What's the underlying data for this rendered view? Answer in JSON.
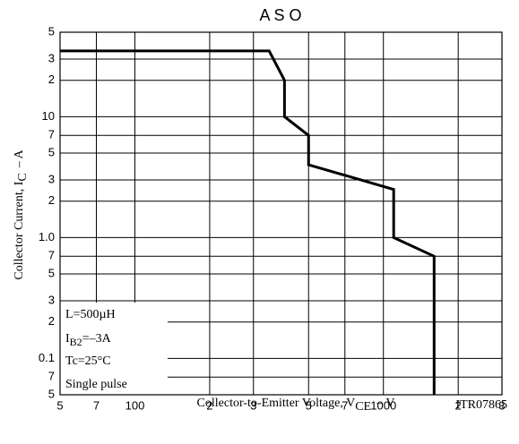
{
  "chart_data": {
    "type": "line",
    "title": "A S O",
    "x_label": {
      "text": "Collector-to-Emitter Voltage, V",
      "sub": "CE",
      "unit": "– V"
    },
    "y_label": {
      "text": "Collector Current, I",
      "sub": "C",
      "unit": "– A"
    },
    "code": "ITR07865",
    "annotation": {
      "lines": [
        "L=500µH",
        "Tc=25°C",
        "Single pulse"
      ],
      "ib": {
        "text": "I",
        "sub": "B2",
        "rest": "=–3A"
      }
    },
    "x_log": true,
    "y_log": true,
    "grid": true,
    "xlim": [
      50,
      3000
    ],
    "ylim": [
      0.05,
      50
    ],
    "xticks": [
      {
        "value": 50,
        "label": "5"
      },
      {
        "value": 70,
        "label": "7"
      },
      100,
      {
        "value": 200,
        "label": "2"
      },
      {
        "value": 300,
        "label": "3"
      },
      {
        "value": 500,
        "label": "5"
      },
      {
        "value": 700,
        "label": "7"
      },
      1000,
      {
        "value": 2000,
        "label": "2"
      },
      {
        "value": 3000,
        "label": "3"
      }
    ],
    "yticks": [
      {
        "value": 0.05,
        "label": "5"
      },
      {
        "value": 0.07,
        "label": "7"
      },
      0.1,
      {
        "value": 0.2,
        "label": "2"
      },
      {
        "value": 0.3,
        "label": "3"
      },
      {
        "value": 0.5,
        "label": "5"
      },
      {
        "value": 0.7,
        "label": "7"
      },
      {
        "value": 1,
        "label": "1.0"
      },
      2,
      3,
      5,
      7,
      10,
      {
        "value": 20,
        "label": "2"
      },
      {
        "value": 30,
        "label": "3"
      },
      {
        "value": 50,
        "label": "5"
      }
    ],
    "series": [
      {
        "color": "#000000",
        "x": [
          50,
          347,
          400,
          400,
          500,
          500,
          1100,
          1100,
          1600,
          1600
        ],
        "values": [
          35,
          35,
          20,
          10,
          7,
          4,
          2.5,
          1,
          0.7,
          0.05
        ]
      }
    ]
  }
}
